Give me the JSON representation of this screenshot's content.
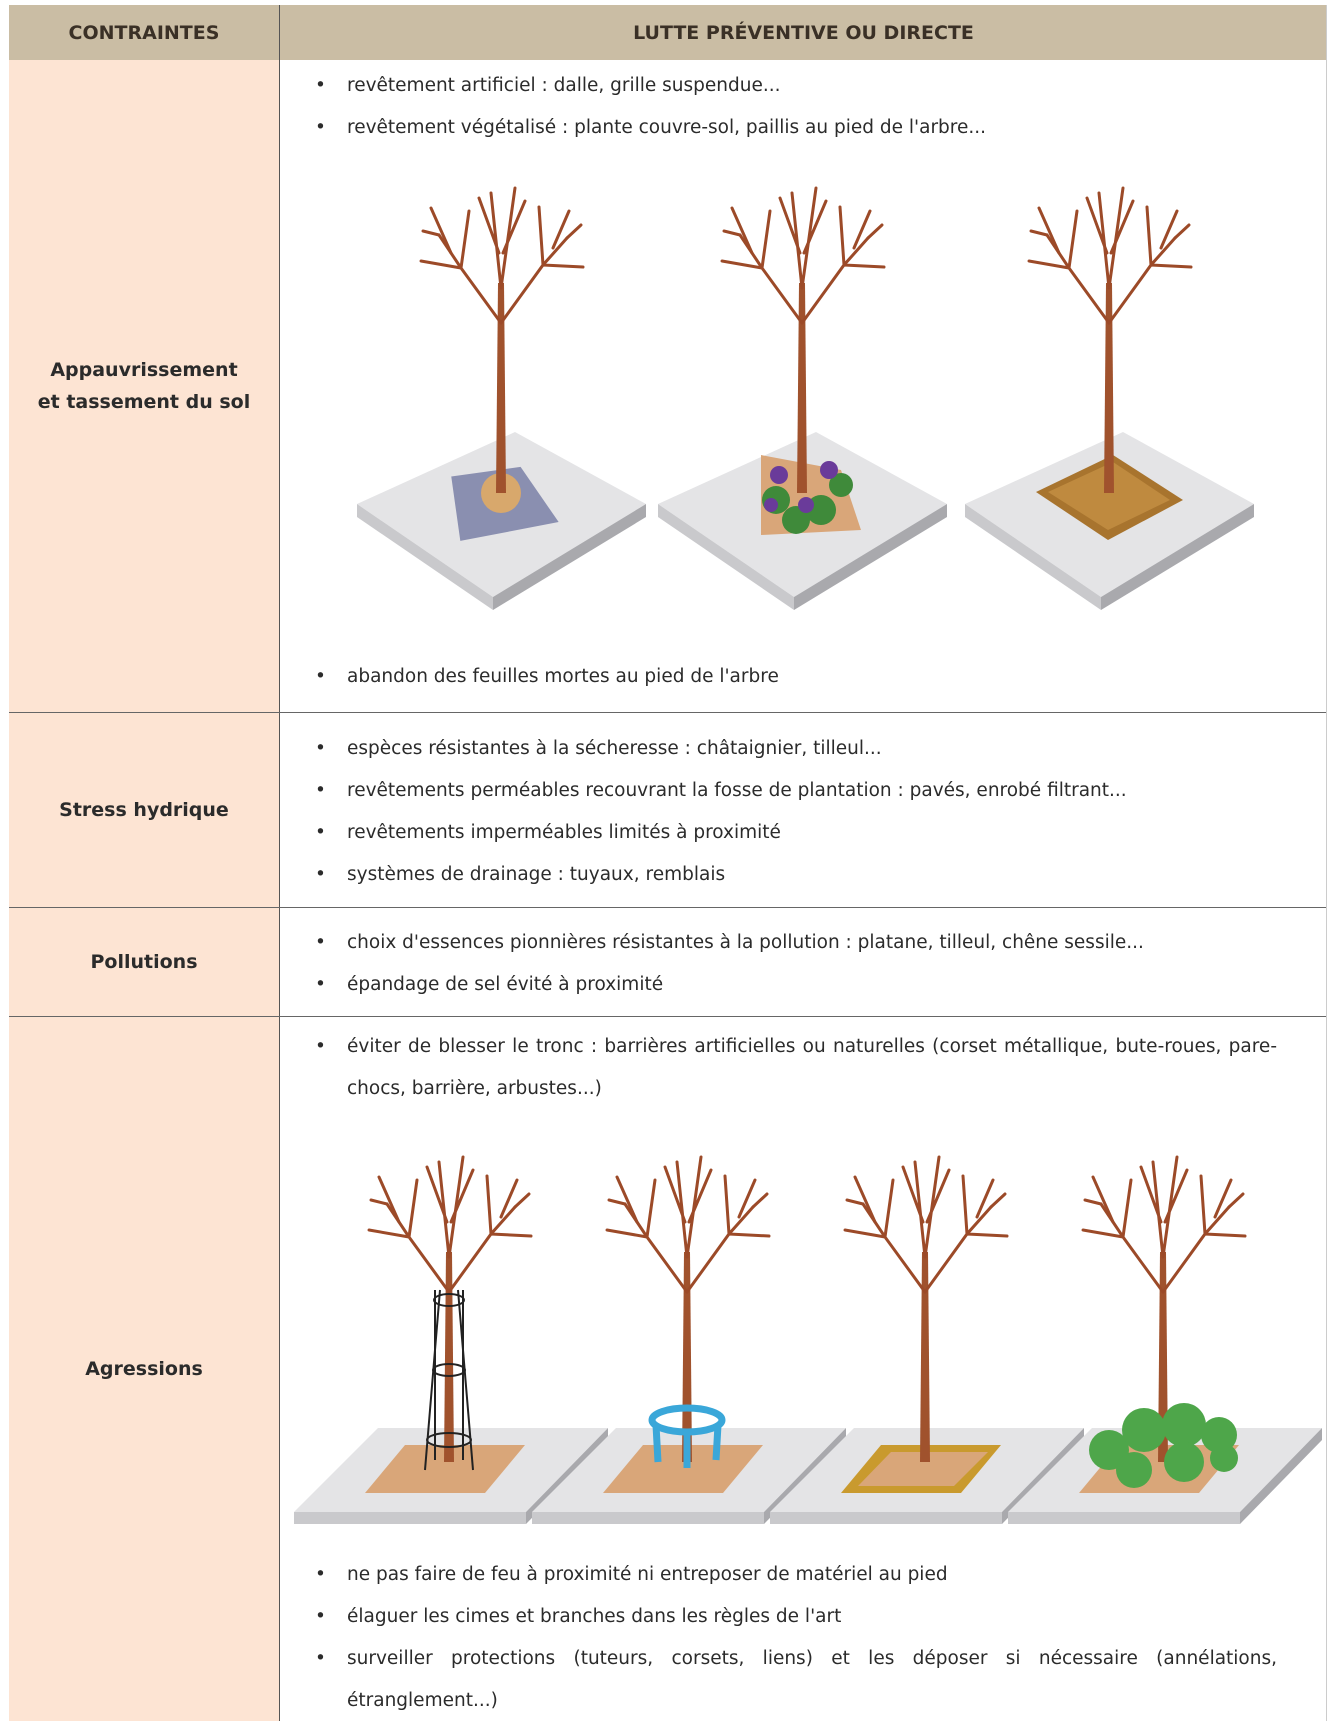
{
  "table": {
    "headers": [
      "CONTRAINTES",
      "LUTTE PRÉVENTIVE OU DIRECTE"
    ],
    "rows": [
      {
        "constraint": [
          "Appauvrissement",
          "et tassement du sol"
        ],
        "measures_top": [
          "revêtement artificiel : dalle, grille suspendue...",
          "revêtement végétalisé : plante couvre-sol, paillis au pied de l'arbre..."
        ],
        "measures_bottom": [
          "abandon des feuilles mortes au pied de l'arbre"
        ]
      },
      {
        "constraint": [
          "Stress hydrique"
        ],
        "measures_top": [
          "espèces résistantes à la sécheresse : châtaignier, tilleul...",
          "revêtements perméables recouvrant la fosse de plantation : pavés, enrobé filtrant...",
          "revêtements imperméables limités à proximité",
          "systèmes de drainage : tuyaux, remblais"
        ]
      },
      {
        "constraint": [
          "Pollutions"
        ],
        "measures_top": [
          "choix d'essences pionnières résistantes à la pollution : platane, tilleul, chêne sessile...",
          "épandage de sel évité à proximité"
        ]
      },
      {
        "constraint": [
          "Agressions"
        ],
        "measures_top": [
          "éviter de blesser le tronc : barrières artificielles ou naturelles (corset métallique, bute-roues, pare-chocs, barrière, arbustes...)"
        ],
        "measures_bottom": [
          "ne pas faire de feu à proximité ni entreposer de matériel au pied",
          "élaguer les cimes et branches dans les règles de l'art",
          "surveiller protections (tuteurs, corsets, liens) et les déposer si nécessaire (annélations, étranglement...)"
        ]
      }
    ]
  }
}
